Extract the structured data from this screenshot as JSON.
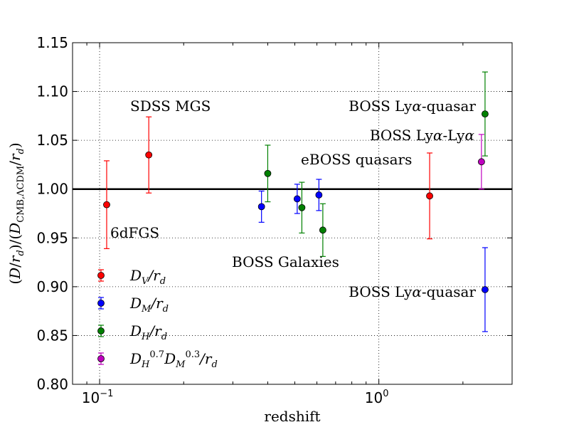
{
  "chart_data": {
    "type": "scatter",
    "title": "",
    "xlabel": "redshift",
    "ylabel": "(D/r_d)/(D_CMB,ΛCDM/r_d)",
    "xscale": "log",
    "xlim": [
      0.08,
      3.0
    ],
    "ylim": [
      0.8,
      1.15
    ],
    "grid": true,
    "reference_line": 1.0,
    "x_ticks": [
      {
        "value": 0.1,
        "base": "10",
        "exp": "−1"
      },
      {
        "value": 1.0,
        "base": "10",
        "exp": "0"
      }
    ],
    "y_ticks": [
      {
        "value": 0.8,
        "label": "0.80"
      },
      {
        "value": 0.85,
        "label": "0.85"
      },
      {
        "value": 0.9,
        "label": "0.90"
      },
      {
        "value": 0.95,
        "label": "0.95"
      },
      {
        "value": 1.0,
        "label": "1.00"
      },
      {
        "value": 1.05,
        "label": "1.05"
      },
      {
        "value": 1.1,
        "label": "1.10"
      },
      {
        "value": 1.15,
        "label": "1.15"
      }
    ],
    "series": [
      {
        "name": "D_V/r_d",
        "color": "#ff0000",
        "points": [
          {
            "x": 0.106,
            "y": 0.984,
            "err": 0.045
          },
          {
            "x": 0.15,
            "y": 1.035,
            "err": 0.039
          },
          {
            "x": 1.52,
            "y": 0.993,
            "err": 0.044
          }
        ]
      },
      {
        "name": "D_M/r_d",
        "color": "#0000ff",
        "points": [
          {
            "x": 0.38,
            "y": 0.982,
            "err": 0.016
          },
          {
            "x": 0.51,
            "y": 0.99,
            "err": 0.015
          },
          {
            "x": 0.61,
            "y": 0.994,
            "err": 0.016
          },
          {
            "x": 2.4,
            "y": 0.897,
            "err": 0.043
          }
        ]
      },
      {
        "name": "D_H/r_d",
        "color": "#008000",
        "points": [
          {
            "x": 0.4,
            "y": 1.016,
            "err": 0.029
          },
          {
            "x": 0.53,
            "y": 0.981,
            "err": 0.026
          },
          {
            "x": 0.63,
            "y": 0.958,
            "err": 0.027
          },
          {
            "x": 2.4,
            "y": 1.077,
            "err": 0.043
          }
        ]
      },
      {
        "name": "D_H^0.7 D_M^0.3/r_d",
        "color": "#bf00bf",
        "points": [
          {
            "x": 2.33,
            "y": 1.028,
            "err": 0.028
          }
        ]
      }
    ],
    "annotations": [
      {
        "text": "SDSS MGS"
      },
      {
        "text": "6dFGS"
      },
      {
        "text": "BOSS Galaxies"
      },
      {
        "text": "eBOSS quasars"
      },
      {
        "pre": "BOSS Ly",
        "greek": "α",
        "post": "-quasar"
      },
      {
        "pre": "BOSS Ly",
        "greek": "α",
        "post": "-Ly",
        "greek2": "α"
      },
      {
        "pre": "BOSS Ly",
        "greek": "α",
        "post": "-quasar"
      }
    ]
  }
}
